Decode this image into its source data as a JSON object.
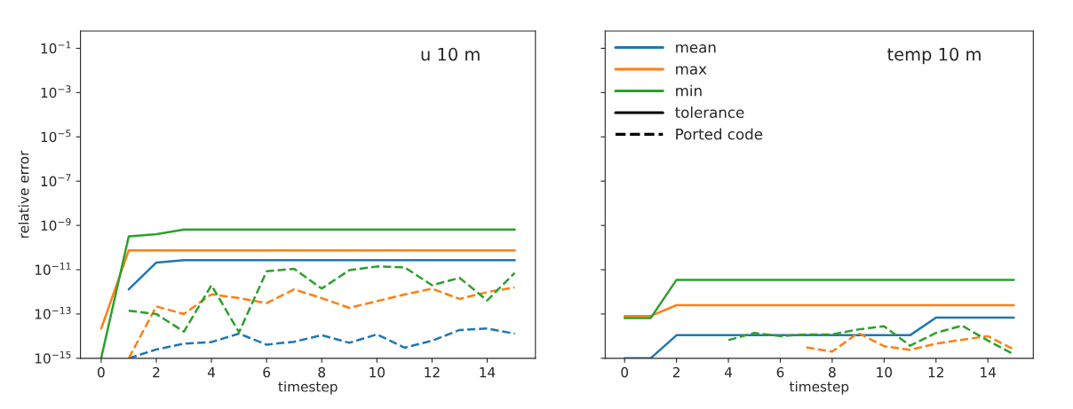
{
  "chart_data": [
    {
      "type": "line",
      "title": "u 10 m",
      "ylabel": "relative error",
      "xlabel": "timestep",
      "x": [
        0,
        1,
        2,
        3,
        4,
        5,
        6,
        7,
        8,
        9,
        10,
        11,
        12,
        13,
        14,
        15
      ],
      "log": "y",
      "xlim": [
        -0.75,
        15.75
      ],
      "ylim": [
        1e-15,
        0.6
      ],
      "xticks": [
        0,
        2,
        4,
        6,
        8,
        10,
        12,
        14
      ],
      "yticks": [
        {
          "value": 1e-15,
          "label": "10$^{−15}$"
        },
        {
          "value": 1e-13,
          "label": "10$^{−13}$"
        },
        {
          "value": 1e-11,
          "label": "10$^{−11}$"
        },
        {
          "value": 1e-09,
          "label": "10$^{−9}$"
        },
        {
          "value": 1e-07,
          "label": "10$^{−7}$"
        },
        {
          "value": 1e-05,
          "label": "10$^{−5}$"
        },
        {
          "value": 0.001,
          "label": "10$^{−3}$"
        },
        {
          "value": 0.1,
          "label": "10$^{−1}$"
        }
      ],
      "legend": false,
      "series": [
        {
          "color": "#1f77b4",
          "line_style": "solid",
          "values": [
            null,
            1.3e-12,
            2.1e-11,
            2.7e-11,
            2.7e-11,
            2.7e-11,
            2.7e-11,
            2.7e-11,
            2.7e-11,
            2.7e-11,
            2.7e-11,
            2.7e-11,
            2.7e-11,
            2.7e-11,
            2.7e-11,
            2.7e-11
          ]
        },
        {
          "color": "#ff7f0e",
          "line_style": "solid",
          "values": [
            2.2e-14,
            7.4e-11,
            7.4e-11,
            7.4e-11,
            7.4e-11,
            7.4e-11,
            7.4e-11,
            7.4e-11,
            7.4e-11,
            7.4e-11,
            7.4e-11,
            7.4e-11,
            7.4e-11,
            7.4e-11,
            7.4e-11,
            7.4e-11
          ]
        },
        {
          "color": "#2ca02c",
          "line_style": "solid",
          "values": [
            1e-15,
            3.2e-10,
            4e-10,
            6.5e-10,
            6.5e-10,
            6.5e-10,
            6.5e-10,
            6.5e-10,
            6.5e-10,
            6.5e-10,
            6.5e-10,
            6.5e-10,
            6.5e-10,
            6.5e-10,
            6.5e-10,
            6.5e-10
          ]
        },
        {
          "color": "#1f77b4",
          "line_style": "dashed",
          "values": [
            null,
            1e-15,
            2.5e-15,
            4.6e-15,
            5.4e-15,
            1.3e-14,
            4.1e-15,
            5.6e-15,
            1.1e-14,
            5e-15,
            1.2e-14,
            3e-15,
            6.2e-15,
            1.9e-14,
            2.2e-14,
            1.3e-14
          ]
        },
        {
          "color": "#ff7f0e",
          "line_style": "dashed",
          "values": [
            null,
            1e-15,
            2.2e-13,
            1e-13,
            7.8e-13,
            5.2e-13,
            3.1e-13,
            1.3e-12,
            5.2e-13,
            1.9e-13,
            3.8e-13,
            7.6e-13,
            1.4e-12,
            4.8e-13,
            9.8e-13,
            1.6e-12
          ]
        },
        {
          "color": "#2ca02c",
          "line_style": "dashed",
          "values": [
            null,
            1.4e-13,
            1e-13,
            1.6e-14,
            2e-12,
            1.5e-14,
            8.5e-12,
            1.1e-11,
            1.4e-12,
            9.5e-12,
            1.4e-11,
            1.3e-11,
            2e-12,
            4.3e-12,
            4.1e-13,
            7.2e-12
          ]
        }
      ]
    },
    {
      "type": "line",
      "title": "temp 10 m",
      "xlabel": "timestep",
      "x": [
        0,
        1,
        2,
        3,
        4,
        5,
        6,
        7,
        8,
        9,
        10,
        11,
        12,
        13,
        14,
        15
      ],
      "log": "y",
      "xlim": [
        -0.75,
        15.75
      ],
      "ylim": [
        1e-15,
        0.6
      ],
      "xticks": [
        0,
        2,
        4,
        6,
        8,
        10,
        12,
        14
      ],
      "yticks": [
        {
          "value": 1e-15,
          "label": null
        },
        {
          "value": 1e-13,
          "label": null
        },
        {
          "value": 1e-11,
          "label": null
        },
        {
          "value": 1e-09,
          "label": null
        },
        {
          "value": 1e-07,
          "label": null
        },
        {
          "value": 1e-05,
          "label": null
        },
        {
          "value": 0.001,
          "label": null
        },
        {
          "value": 0.1,
          "label": null
        }
      ],
      "tick_labels": "x",
      "legend": "top left",
      "series": [
        {
          "name": "mean",
          "color": "#1f77b4",
          "line_style": "solid",
          "values": [
            1e-15,
            1e-15,
            1.1e-14,
            1.1e-14,
            1.1e-14,
            1.1e-14,
            1.1e-14,
            1.1e-14,
            1.1e-14,
            1.1e-14,
            1.1e-14,
            1.1e-14,
            6.9e-14,
            6.9e-14,
            6.9e-14,
            6.9e-14
          ]
        },
        {
          "name": "max",
          "color": "#ff7f0e",
          "line_style": "solid",
          "values": [
            8.1e-14,
            8.1e-14,
            2.5e-13,
            2.5e-13,
            2.5e-13,
            2.5e-13,
            2.5e-13,
            2.5e-13,
            2.5e-13,
            2.5e-13,
            2.5e-13,
            2.5e-13,
            2.5e-13,
            2.5e-13,
            2.5e-13,
            2.5e-13
          ]
        },
        {
          "name": "min",
          "color": "#2ca02c",
          "line_style": "solid",
          "values": [
            6.5e-14,
            6.5e-14,
            3.5e-12,
            3.5e-12,
            3.5e-12,
            3.5e-12,
            3.5e-12,
            3.5e-12,
            3.5e-12,
            3.5e-12,
            3.5e-12,
            3.5e-12,
            3.5e-12,
            3.5e-12,
            3.5e-12,
            3.5e-12
          ]
        },
        {
          "name": "tolerance",
          "color": "#000000",
          "line_style": "solid",
          "values": [
            null,
            null,
            null,
            null,
            null,
            null,
            null,
            null,
            null,
            null,
            null,
            null,
            null,
            null,
            null,
            null
          ]
        },
        {
          "name": "Ported code",
          "color": "#000000",
          "line_style": "dashed",
          "values": [
            null,
            null,
            null,
            null,
            null,
            null,
            null,
            null,
            null,
            null,
            null,
            null,
            null,
            null,
            null,
            null
          ]
        },
        {
          "color": "#ff7f0e",
          "line_style": "dashed",
          "values": [
            null,
            null,
            null,
            null,
            null,
            null,
            null,
            3.1e-15,
            2e-15,
            1.4e-14,
            3.5e-15,
            2.4e-15,
            4.6e-15,
            6.9e-15,
            1e-14,
            2.5e-15
          ]
        },
        {
          "color": "#2ca02c",
          "line_style": "dashed",
          "values": [
            null,
            null,
            null,
            null,
            6.6e-15,
            1.4e-14,
            1e-14,
            1.2e-14,
            1.2e-14,
            2e-14,
            2.8e-14,
            3.7e-15,
            1.4e-14,
            3e-14,
            6.3e-15,
            1.5e-15
          ]
        }
      ]
    }
  ]
}
